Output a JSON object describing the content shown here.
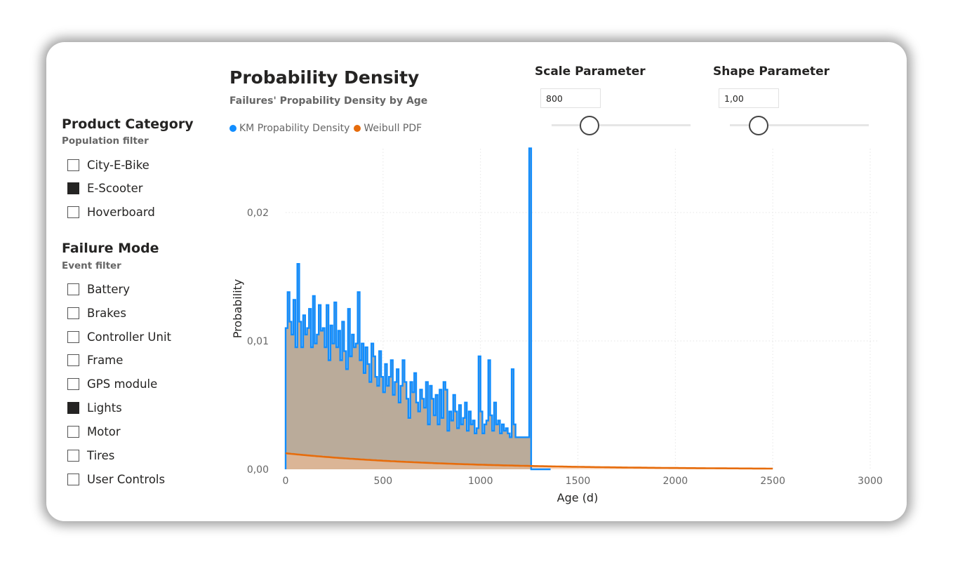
{
  "product_category": {
    "title": "Product Category",
    "subtitle": "Population filter",
    "items": [
      {
        "label": "City-E-Bike",
        "checked": false
      },
      {
        "label": "E-Scooter",
        "checked": true
      },
      {
        "label": "Hoverboard",
        "checked": false
      }
    ]
  },
  "failure_mode": {
    "title": "Failure Mode",
    "subtitle": "Event filter",
    "items": [
      {
        "label": "Battery",
        "checked": false
      },
      {
        "label": "Brakes",
        "checked": false
      },
      {
        "label": "Controller Unit",
        "checked": false
      },
      {
        "label": "Frame",
        "checked": false
      },
      {
        "label": "GPS module",
        "checked": false
      },
      {
        "label": "Lights",
        "checked": true
      },
      {
        "label": "Motor",
        "checked": false
      },
      {
        "label": "Tires",
        "checked": false
      },
      {
        "label": "User Controls",
        "checked": false
      }
    ]
  },
  "scale_parameter": {
    "title": "Scale Parameter",
    "value": "800"
  },
  "shape_parameter": {
    "title": "Shape Parameter",
    "value": "1,00"
  },
  "colors": {
    "km": "#118DFF",
    "weibull": "#E66C0C",
    "weibull_fill": "#F6BE94",
    "km_fill": "#B6A795"
  },
  "chart_data": {
    "type": "area",
    "title": "Probability Density",
    "subtitle": "Failures' Propability Density by Age",
    "xlabel": "Age (d)",
    "ylabel": "Probability",
    "xlim": [
      0,
      3000
    ],
    "ylim": [
      0,
      0.025
    ],
    "xticks": [
      "0",
      "500",
      "1000",
      "1500",
      "2000",
      "2500",
      "3000"
    ],
    "yticks": [
      "0,00",
      "0,01",
      "0,02"
    ],
    "grid": true,
    "legend_position": "top-left",
    "series": [
      {
        "name": "KM Propability Density",
        "kind": "step",
        "x": [
          0,
          10,
          20,
          30,
          40,
          50,
          60,
          70,
          80,
          90,
          100,
          110,
          120,
          130,
          140,
          150,
          160,
          170,
          180,
          190,
          200,
          210,
          220,
          230,
          240,
          250,
          260,
          270,
          280,
          290,
          300,
          310,
          320,
          330,
          340,
          350,
          360,
          370,
          380,
          390,
          400,
          410,
          420,
          430,
          440,
          450,
          460,
          470,
          480,
          490,
          500,
          510,
          520,
          530,
          540,
          550,
          560,
          570,
          580,
          590,
          600,
          610,
          620,
          630,
          640,
          650,
          660,
          670,
          680,
          690,
          700,
          710,
          720,
          730,
          740,
          750,
          760,
          770,
          780,
          790,
          800,
          810,
          820,
          830,
          840,
          850,
          860,
          870,
          880,
          890,
          900,
          910,
          920,
          930,
          940,
          950,
          960,
          970,
          980,
          990,
          1000,
          1010,
          1020,
          1030,
          1040,
          1050,
          1060,
          1070,
          1080,
          1090,
          1100,
          1110,
          1120,
          1130,
          1140,
          1150,
          1160,
          1170,
          1180,
          1190,
          1200,
          1210,
          1220,
          1230,
          1240,
          1250,
          1260,
          1360
        ],
        "values": [
          0.011,
          0.0138,
          0.0115,
          0.0105,
          0.0132,
          0.0095,
          0.016,
          0.0115,
          0.0095,
          0.012,
          0.0105,
          0.011,
          0.0125,
          0.0095,
          0.0135,
          0.0098,
          0.0105,
          0.0128,
          0.0108,
          0.011,
          0.0095,
          0.0128,
          0.0085,
          0.0112,
          0.0098,
          0.013,
          0.0095,
          0.0108,
          0.0085,
          0.0115,
          0.0092,
          0.0078,
          0.0125,
          0.0088,
          0.0105,
          0.0095,
          0.0098,
          0.0138,
          0.0085,
          0.0098,
          0.0075,
          0.0095,
          0.0082,
          0.0068,
          0.0098,
          0.0088,
          0.0072,
          0.0065,
          0.0092,
          0.0072,
          0.006,
          0.0082,
          0.0065,
          0.0072,
          0.0085,
          0.0058,
          0.0068,
          0.0078,
          0.0052,
          0.0065,
          0.0085,
          0.0068,
          0.0055,
          0.004,
          0.0068,
          0.006,
          0.0075,
          0.0052,
          0.0045,
          0.0062,
          0.0055,
          0.0048,
          0.0068,
          0.0035,
          0.0065,
          0.0055,
          0.0042,
          0.0058,
          0.0035,
          0.0062,
          0.004,
          0.0068,
          0.0062,
          0.003,
          0.0045,
          0.0038,
          0.0058,
          0.0045,
          0.0032,
          0.005,
          0.0035,
          0.004,
          0.0052,
          0.003,
          0.0045,
          0.0035,
          0.0038,
          0.0028,
          0.0032,
          0.0088,
          0.0045,
          0.0028,
          0.0035,
          0.0038,
          0.0085,
          0.0042,
          0.003,
          0.0052,
          0.0035,
          0.0038,
          0.0028,
          0.0035,
          0.003,
          0.0032,
          0.0028,
          0.0025,
          0.0078,
          0.0035,
          0.0025,
          0.0025,
          0.0025,
          0.0025,
          0.0025,
          0.0025,
          0.0025,
          0.025,
          0.0,
          0.0
        ]
      },
      {
        "name": "Weibull PDF",
        "kind": "line",
        "x_range": [
          0,
          2500
        ],
        "scale": 800,
        "shape": 1.0
      }
    ]
  }
}
